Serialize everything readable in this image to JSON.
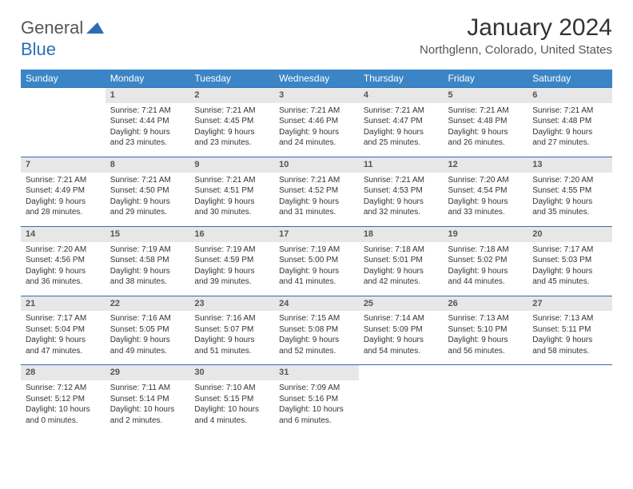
{
  "brand": {
    "part1": "General",
    "part2": "Blue"
  },
  "title": "January 2024",
  "location": "Northglenn, Colorado, United States",
  "colors": {
    "header_bg": "#3b85c6",
    "daynum_bg": "#e7e7e7",
    "rule": "#2a6fb5",
    "text": "#333333"
  },
  "weekdays": [
    "Sunday",
    "Monday",
    "Tuesday",
    "Wednesday",
    "Thursday",
    "Friday",
    "Saturday"
  ],
  "weeks": [
    [
      null,
      {
        "n": "1",
        "sr": "7:21 AM",
        "ss": "4:44 PM",
        "dl": "9 hours and 23 minutes."
      },
      {
        "n": "2",
        "sr": "7:21 AM",
        "ss": "4:45 PM",
        "dl": "9 hours and 23 minutes."
      },
      {
        "n": "3",
        "sr": "7:21 AM",
        "ss": "4:46 PM",
        "dl": "9 hours and 24 minutes."
      },
      {
        "n": "4",
        "sr": "7:21 AM",
        "ss": "4:47 PM",
        "dl": "9 hours and 25 minutes."
      },
      {
        "n": "5",
        "sr": "7:21 AM",
        "ss": "4:48 PM",
        "dl": "9 hours and 26 minutes."
      },
      {
        "n": "6",
        "sr": "7:21 AM",
        "ss": "4:48 PM",
        "dl": "9 hours and 27 minutes."
      }
    ],
    [
      {
        "n": "7",
        "sr": "7:21 AM",
        "ss": "4:49 PM",
        "dl": "9 hours and 28 minutes."
      },
      {
        "n": "8",
        "sr": "7:21 AM",
        "ss": "4:50 PM",
        "dl": "9 hours and 29 minutes."
      },
      {
        "n": "9",
        "sr": "7:21 AM",
        "ss": "4:51 PM",
        "dl": "9 hours and 30 minutes."
      },
      {
        "n": "10",
        "sr": "7:21 AM",
        "ss": "4:52 PM",
        "dl": "9 hours and 31 minutes."
      },
      {
        "n": "11",
        "sr": "7:21 AM",
        "ss": "4:53 PM",
        "dl": "9 hours and 32 minutes."
      },
      {
        "n": "12",
        "sr": "7:20 AM",
        "ss": "4:54 PM",
        "dl": "9 hours and 33 minutes."
      },
      {
        "n": "13",
        "sr": "7:20 AM",
        "ss": "4:55 PM",
        "dl": "9 hours and 35 minutes."
      }
    ],
    [
      {
        "n": "14",
        "sr": "7:20 AM",
        "ss": "4:56 PM",
        "dl": "9 hours and 36 minutes."
      },
      {
        "n": "15",
        "sr": "7:19 AM",
        "ss": "4:58 PM",
        "dl": "9 hours and 38 minutes."
      },
      {
        "n": "16",
        "sr": "7:19 AM",
        "ss": "4:59 PM",
        "dl": "9 hours and 39 minutes."
      },
      {
        "n": "17",
        "sr": "7:19 AM",
        "ss": "5:00 PM",
        "dl": "9 hours and 41 minutes."
      },
      {
        "n": "18",
        "sr": "7:18 AM",
        "ss": "5:01 PM",
        "dl": "9 hours and 42 minutes."
      },
      {
        "n": "19",
        "sr": "7:18 AM",
        "ss": "5:02 PM",
        "dl": "9 hours and 44 minutes."
      },
      {
        "n": "20",
        "sr": "7:17 AM",
        "ss": "5:03 PM",
        "dl": "9 hours and 45 minutes."
      }
    ],
    [
      {
        "n": "21",
        "sr": "7:17 AM",
        "ss": "5:04 PM",
        "dl": "9 hours and 47 minutes."
      },
      {
        "n": "22",
        "sr": "7:16 AM",
        "ss": "5:05 PM",
        "dl": "9 hours and 49 minutes."
      },
      {
        "n": "23",
        "sr": "7:16 AM",
        "ss": "5:07 PM",
        "dl": "9 hours and 51 minutes."
      },
      {
        "n": "24",
        "sr": "7:15 AM",
        "ss": "5:08 PM",
        "dl": "9 hours and 52 minutes."
      },
      {
        "n": "25",
        "sr": "7:14 AM",
        "ss": "5:09 PM",
        "dl": "9 hours and 54 minutes."
      },
      {
        "n": "26",
        "sr": "7:13 AM",
        "ss": "5:10 PM",
        "dl": "9 hours and 56 minutes."
      },
      {
        "n": "27",
        "sr": "7:13 AM",
        "ss": "5:11 PM",
        "dl": "9 hours and 58 minutes."
      }
    ],
    [
      {
        "n": "28",
        "sr": "7:12 AM",
        "ss": "5:12 PM",
        "dl": "10 hours and 0 minutes."
      },
      {
        "n": "29",
        "sr": "7:11 AM",
        "ss": "5:14 PM",
        "dl": "10 hours and 2 minutes."
      },
      {
        "n": "30",
        "sr": "7:10 AM",
        "ss": "5:15 PM",
        "dl": "10 hours and 4 minutes."
      },
      {
        "n": "31",
        "sr": "7:09 AM",
        "ss": "5:16 PM",
        "dl": "10 hours and 6 minutes."
      },
      null,
      null,
      null
    ]
  ],
  "labels": {
    "sunrise": "Sunrise: ",
    "sunset": "Sunset: ",
    "daylight": "Daylight: "
  }
}
